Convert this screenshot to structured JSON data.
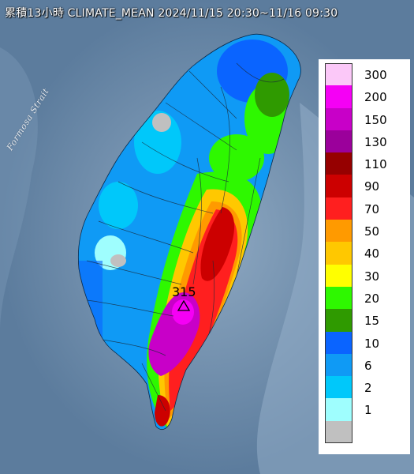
{
  "title": "累積13小時 CLIMATE_MEAN 2024/11/15 20:30~11/16 09:30",
  "sea_label": "Formosa Strait",
  "peak_value": "315",
  "legend": [
    {
      "label": "300",
      "color": "#fbc8f8"
    },
    {
      "label": "200",
      "color": "#f500f5"
    },
    {
      "label": "150",
      "color": "#c800c8"
    },
    {
      "label": "130",
      "color": "#9b009b"
    },
    {
      "label": "110",
      "color": "#960000"
    },
    {
      "label": "90",
      "color": "#cc0000"
    },
    {
      "label": "70",
      "color": "#ff1f1f"
    },
    {
      "label": "50",
      "color": "#ff9a00"
    },
    {
      "label": "40",
      "color": "#ffc800"
    },
    {
      "label": "30",
      "color": "#ffff00"
    },
    {
      "label": "20",
      "color": "#2ef800"
    },
    {
      "label": "15",
      "color": "#2f9a00"
    },
    {
      "label": "10",
      "color": "#0a64ff"
    },
    {
      "label": "6",
      "color": "#0f9af5"
    },
    {
      "label": "2",
      "color": "#00c8fa"
    },
    {
      "label": "1",
      "color": "#9ffefe"
    },
    {
      "label": "",
      "color": "#c0c0c0"
    }
  ]
}
